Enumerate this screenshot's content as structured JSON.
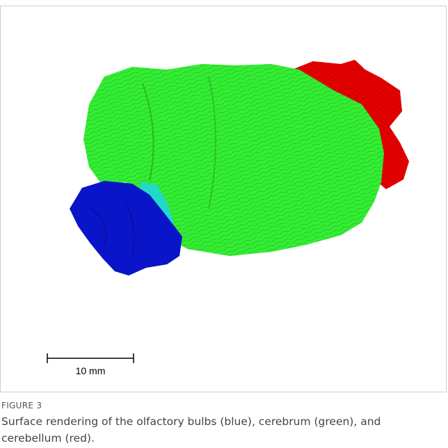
{
  "figure": {
    "scale_bar_label": "10 mm",
    "label": "FIGURE 3",
    "caption": "Surface rendering of the olfactory bulbs (blue), cerebrum (green), and cerebellum (red)."
  }
}
